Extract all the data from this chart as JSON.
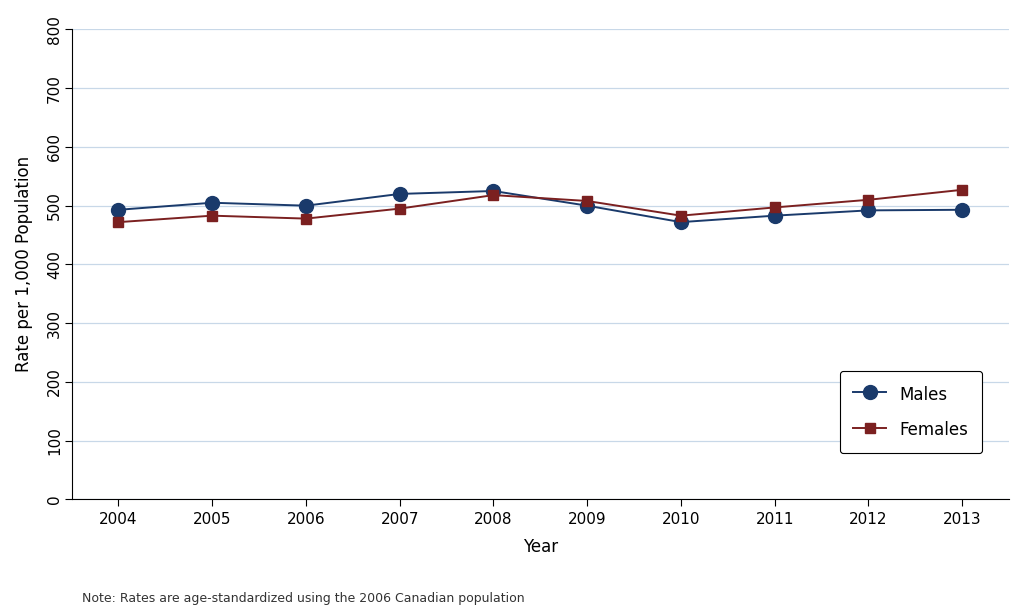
{
  "years": [
    2004,
    2005,
    2006,
    2007,
    2008,
    2009,
    2010,
    2011,
    2012,
    2013
  ],
  "males": [
    493,
    505,
    500,
    520,
    525,
    500,
    472,
    483,
    492,
    493
  ],
  "females": [
    472,
    483,
    478,
    495,
    518,
    508,
    483,
    497,
    510,
    527
  ],
  "males_color": "#1a3a6b",
  "females_color": "#7b2020",
  "ylabel": "Rate per 1,000 Population",
  "xlabel": "Year",
  "ylim": [
    0,
    800
  ],
  "yticks": [
    0,
    100,
    200,
    300,
    400,
    500,
    600,
    700,
    800
  ],
  "note": "Note: Rates are age-standardized using the 2006 Canadian population",
  "legend_labels": [
    "Males",
    "Females"
  ],
  "background_color": "#ffffff",
  "grid_color": "#c8d8e8",
  "axis_fontsize": 12,
  "tick_fontsize": 11,
  "note_fontsize": 9,
  "line_width": 1.4,
  "marker_size_male": 10,
  "marker_size_female": 7
}
